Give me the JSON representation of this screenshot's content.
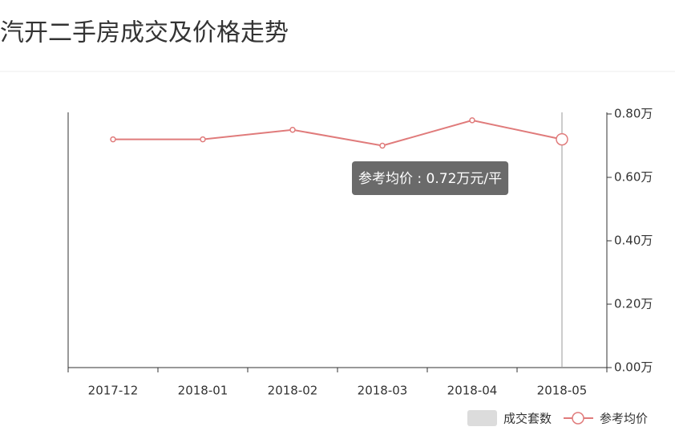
{
  "chart_data": {
    "type": "line",
    "title": "汽开二手房成交及价格走势",
    "categories": [
      "2017-12",
      "2018-01",
      "2018-02",
      "2018-03",
      "2018-04",
      "2018-05"
    ],
    "series": [
      {
        "name": "成交套数",
        "type": "bar",
        "color": "#dcdcdc",
        "values": [
          null,
          null,
          null,
          null,
          null,
          null
        ]
      },
      {
        "name": "参考均价",
        "type": "line",
        "color": "#e07b7b",
        "axis": "y2",
        "values": [
          0.72,
          0.72,
          0.75,
          0.7,
          0.78,
          0.72
        ]
      }
    ],
    "y2lim": [
      0,
      0.8
    ],
    "y2ticks": [
      {
        "value": 0,
        "label": "0.00万"
      },
      {
        "value": 0.2,
        "label": "0.20万"
      },
      {
        "value": 0.4,
        "label": "0.40万"
      },
      {
        "value": 0.6,
        "label": "0.60万"
      },
      {
        "value": 0.8,
        "label": "0.80万"
      }
    ],
    "tooltip": {
      "index": 5,
      "text": "参考均价 : 0.72万元/平"
    },
    "legend": "bottom-right"
  }
}
